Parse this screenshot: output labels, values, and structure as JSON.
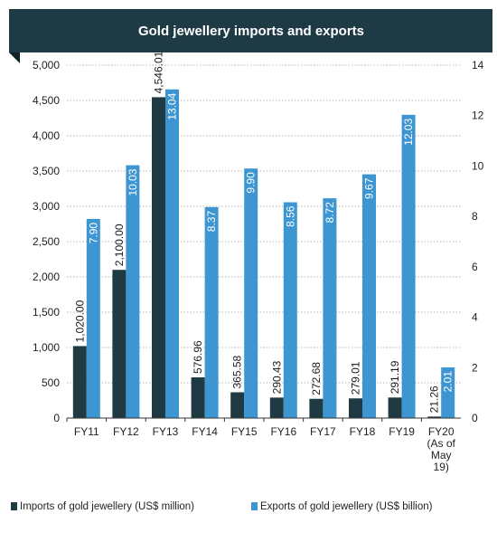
{
  "colors": {
    "header_bg": "#1e3a44",
    "header_text": "#ffffff",
    "imports": "#1f3a42",
    "exports": "#3d96d2",
    "imports_label": "#1a1a1a",
    "exports_label": "#ffffff"
  },
  "chart_data": {
    "type": "bar",
    "title": "Gold jewellery imports and exports",
    "categories": [
      "FY11",
      "FY12",
      "FY13",
      "FY14",
      "FY15",
      "FY16",
      "FY17",
      "FY18",
      "FY19",
      "FY20\n(As of\nMay\n19)"
    ],
    "series": [
      {
        "name": "Imports of gold jewellery (US$ million)",
        "axis": "left",
        "values": [
          1020.0,
          2100.0,
          4546.01,
          576.96,
          365.58,
          290.43,
          272.68,
          279.01,
          291.19,
          21.26
        ],
        "labels": [
          "1,020.00",
          "2,100.00",
          "4,546.01",
          "576.96",
          "365.58",
          "290.43",
          "272.68",
          "279.01",
          "291.19",
          "21.26"
        ]
      },
      {
        "name": "Exports of gold jewellery (US$ billion)",
        "axis": "right",
        "values": [
          7.9,
          10.03,
          13.04,
          8.37,
          9.9,
          8.56,
          8.72,
          9.67,
          12.03,
          2.01
        ],
        "labels": [
          "7.90",
          "10.03",
          "13.04",
          "8.37",
          "9.90",
          "8.56",
          "8.72",
          "9.67",
          "12.03",
          "2.01"
        ]
      }
    ],
    "y_left": {
      "min": 0,
      "max": 5000,
      "ticks": [
        0,
        500,
        1000,
        1500,
        2000,
        2500,
        3000,
        3500,
        4000,
        4500,
        5000
      ],
      "tick_labels": [
        "0",
        "500",
        "1,000",
        "1,500",
        "2,000",
        "2,500",
        "3,000",
        "3,500",
        "4,000",
        "4,500",
        "5,000"
      ]
    },
    "y_right": {
      "min": 0,
      "max": 14,
      "ticks": [
        0,
        2,
        4,
        6,
        8,
        10,
        12,
        14
      ],
      "tick_labels": [
        "0",
        "2",
        "4",
        "6",
        "8",
        "10",
        "12",
        "14"
      ]
    },
    "grid": "horizontal-dotted",
    "legend_position": "bottom"
  }
}
